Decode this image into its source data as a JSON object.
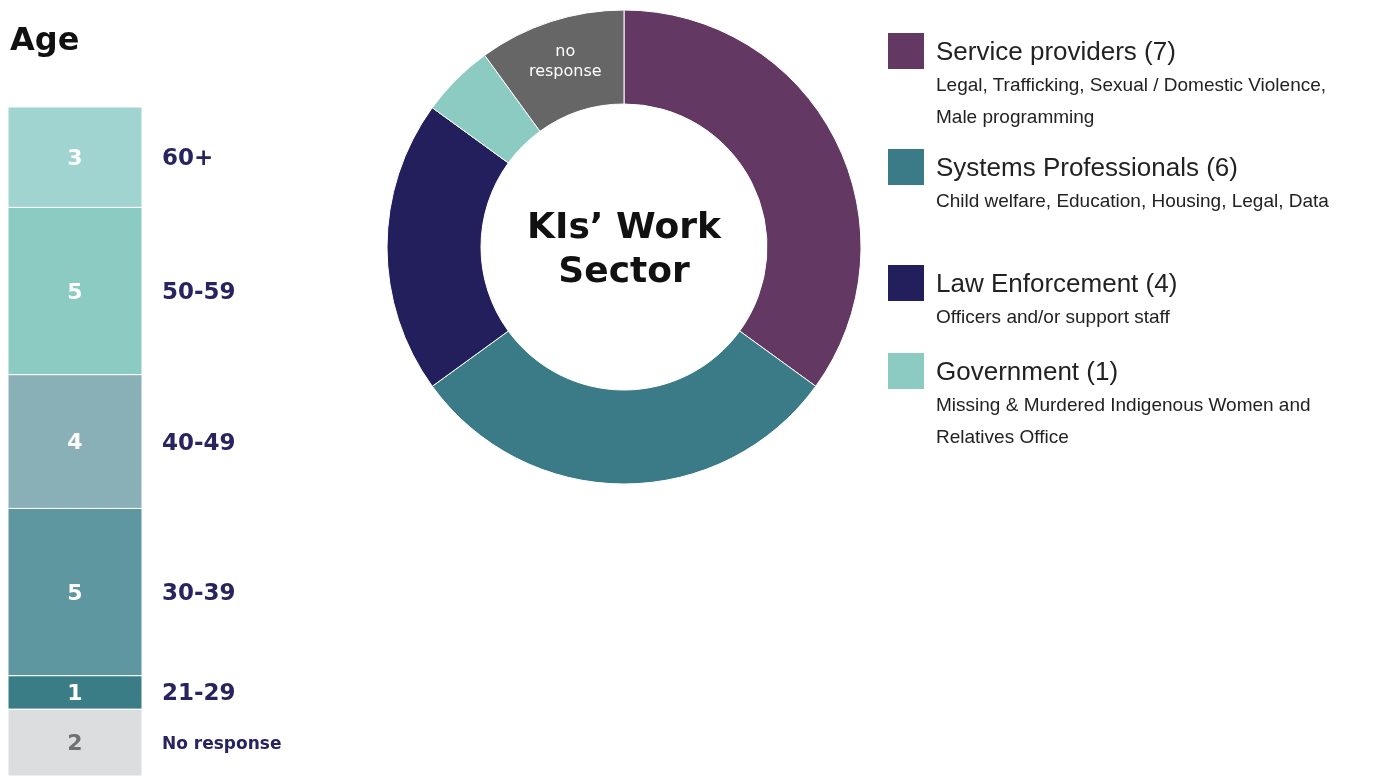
{
  "chart_data": [
    {
      "type": "bar",
      "title": "Age",
      "stacked": true,
      "categories": [
        null
      ],
      "data_labels": true,
      "series": [
        {
          "name": "No response",
          "color": "#dcdddf",
          "values": [
            2
          ]
        },
        {
          "name": "21-29",
          "color": "#3a7d87",
          "values": [
            1
          ]
        },
        {
          "name": "30-39",
          "color": "#5f97a0",
          "values": [
            5
          ]
        },
        {
          "name": "40-49",
          "color": "#88b0b6",
          "values": [
            4
          ]
        },
        {
          "name": "50-59",
          "color": "#8bcbc1",
          "values": [
            5
          ]
        },
        {
          "name": "60+",
          "color": "#a0d4d0",
          "values": [
            3
          ]
        }
      ]
    },
    {
      "type": "donut",
      "title": "KIs’ Work Sector",
      "legend": "right",
      "categories": [
        "Service providers (7)",
        "Systems Professionals (6)",
        "Law Enforcement (4)",
        "Government (1)",
        "no response"
      ],
      "values": [
        7,
        6,
        4,
        1,
        2
      ],
      "colors": [
        "#633963",
        "#3a7b87",
        "#221f5c",
        "#8bcbc1",
        "#666666"
      ],
      "annotations": [
        "Legal, Trafficking, Sexual / Domestic Violence, Male programming",
        "Child welfare, Education, Housing, Legal, Data",
        "Officers and/or support staff",
        "Missing & Murdered Indigenous Women and Relatives Office"
      ]
    }
  ]
}
